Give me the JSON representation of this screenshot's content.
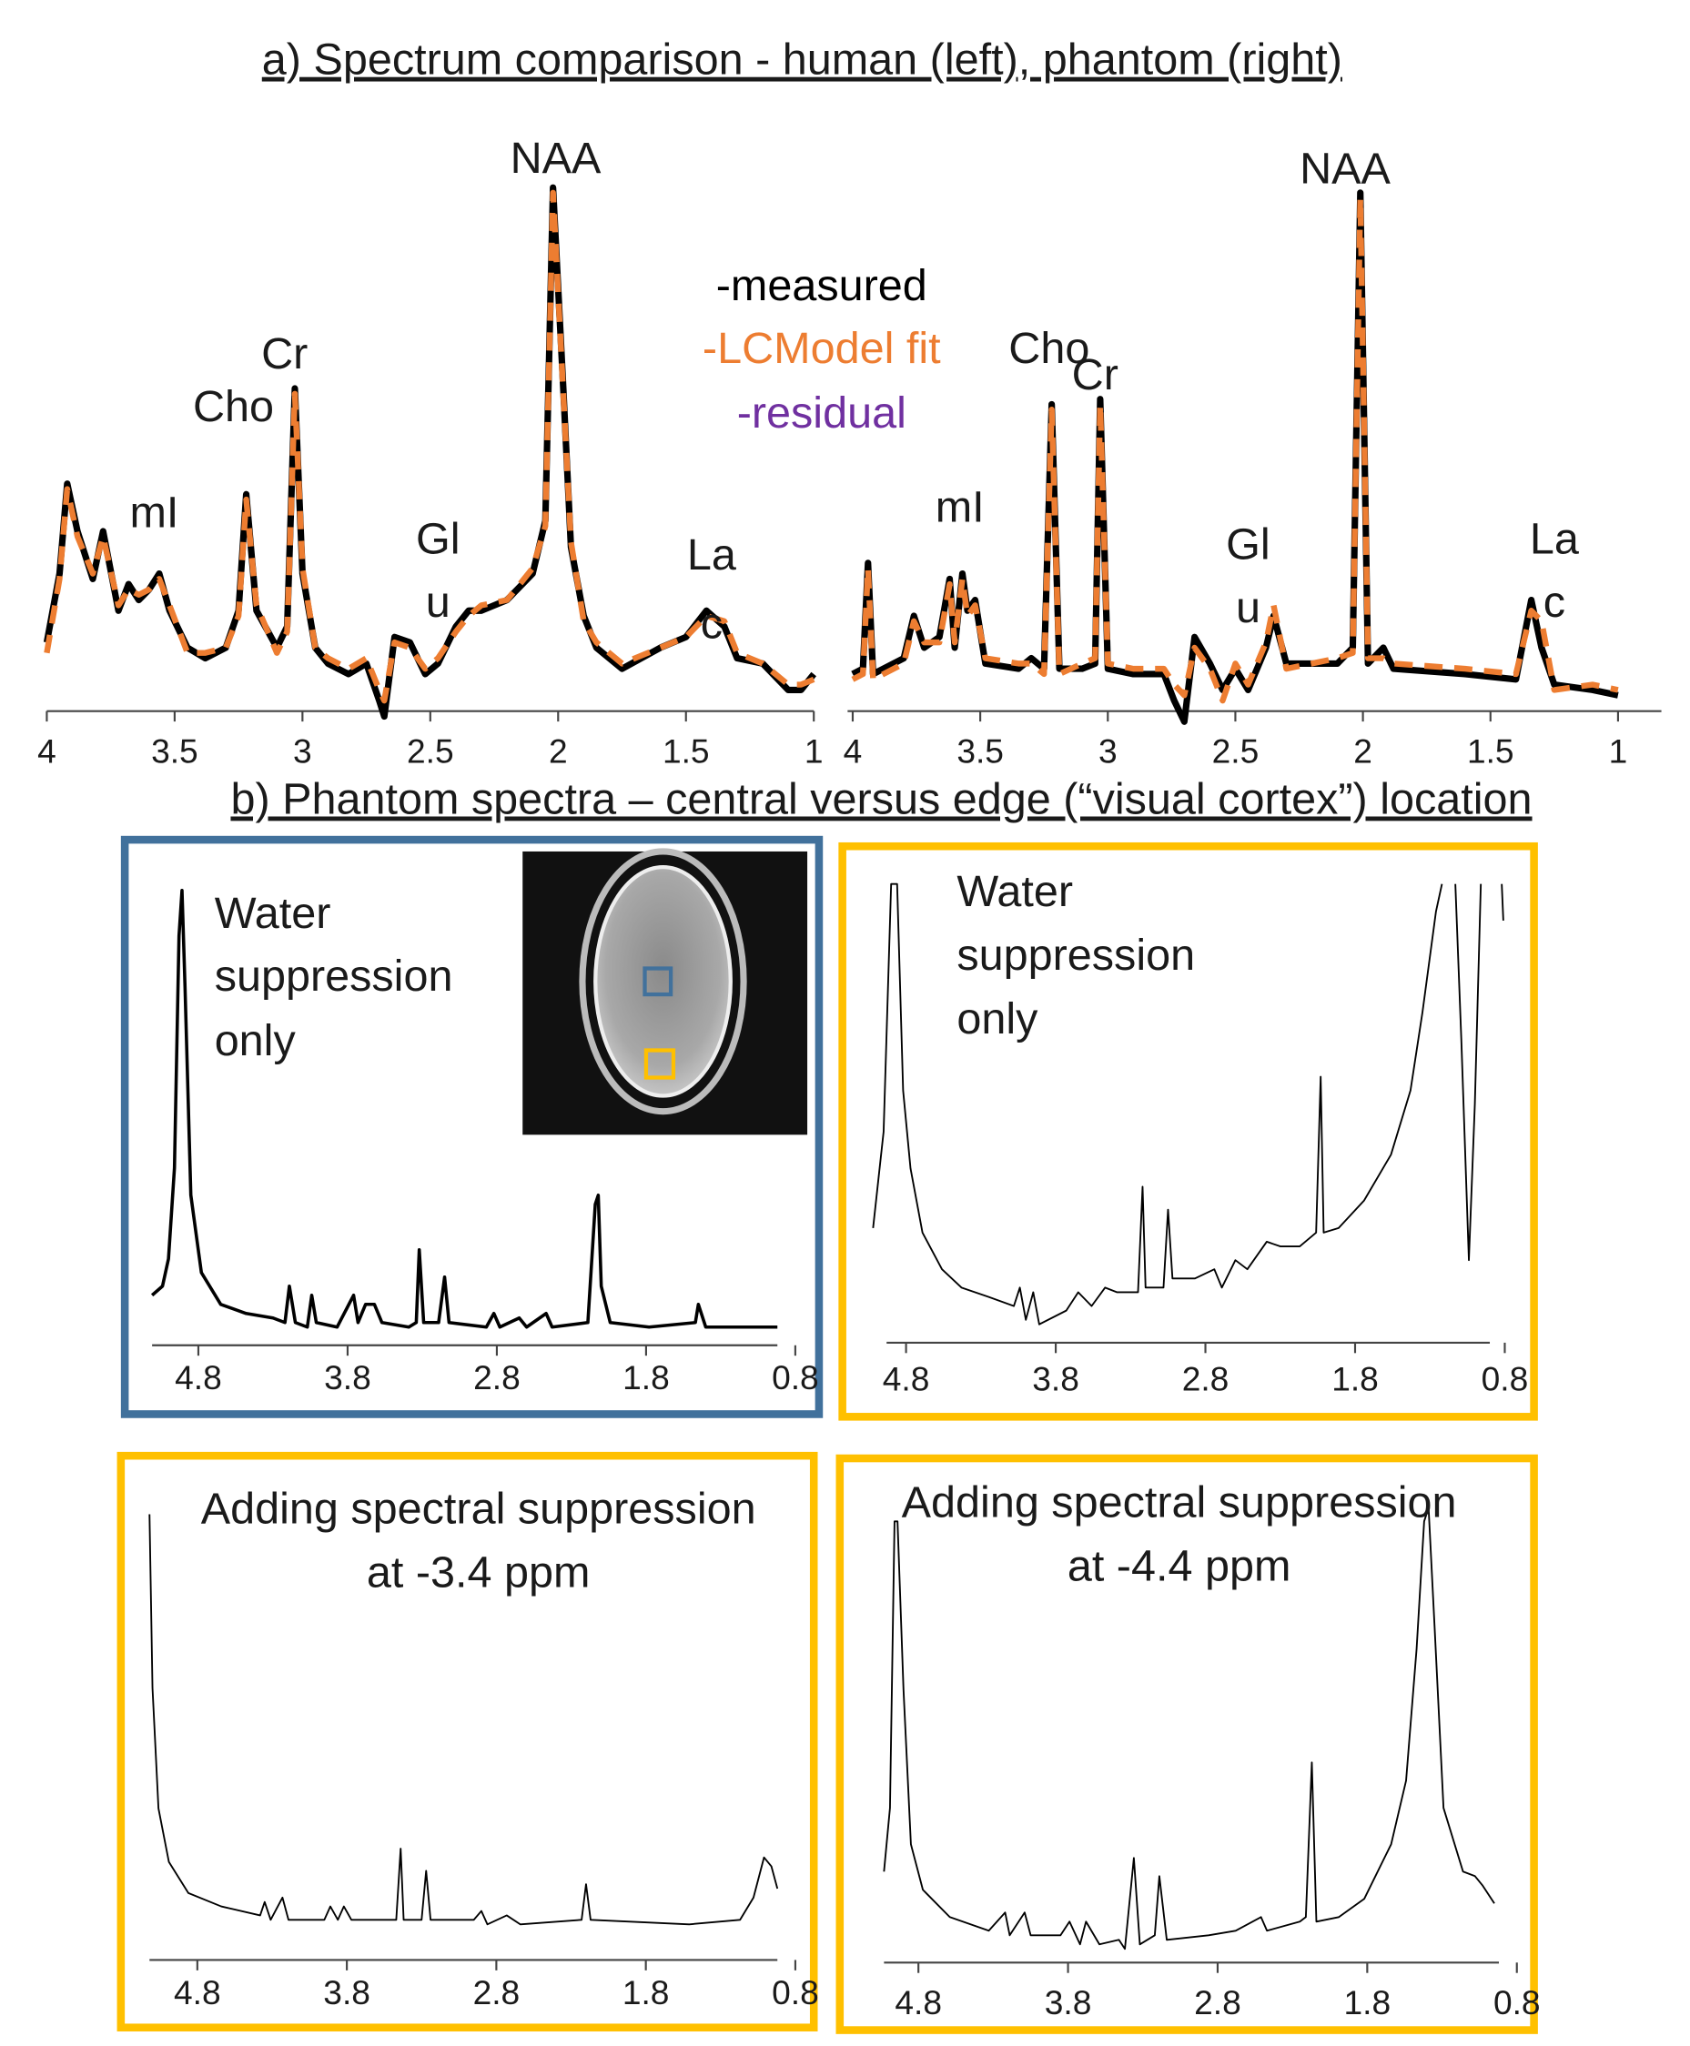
{
  "headings": [
    "a) Spectrum comparison  - human (left), phantom (right)",
    "b) Phantom spectra – central versus edge (“visual cortex”)  location"
  ],
  "chart_data": [
    {
      "type": "line",
      "xlim": [
        4,
        1
      ],
      "ylim": [
        0,
        100
      ],
      "xticks": [
        4,
        3.5,
        3,
        2.5,
        2,
        1.5,
        1
      ],
      "x": [
        4.0,
        3.95,
        3.92,
        3.88,
        3.82,
        3.78,
        3.72,
        3.68,
        3.64,
        3.6,
        3.56,
        3.52,
        3.45,
        3.38,
        3.3,
        3.25,
        3.22,
        3.18,
        3.1,
        3.06,
        3.03,
        3.0,
        2.95,
        2.9,
        2.82,
        2.75,
        2.7,
        2.68,
        2.64,
        2.58,
        2.52,
        2.47,
        2.4,
        2.35,
        2.3,
        2.2,
        2.1,
        2.05,
        2.02,
        1.98,
        1.95,
        1.9,
        1.85,
        1.75,
        1.6,
        1.5,
        1.42,
        1.35,
        1.3,
        1.2,
        1.1,
        1.05,
        1.0
      ],
      "series": [
        {
          "name": "-measured",
          "color": "#000000",
          "line_style": "solid",
          "values": [
            13,
            26,
            43,
            34,
            25,
            34,
            19,
            24,
            21,
            23,
            26,
            19,
            12,
            10,
            12,
            19,
            41,
            19,
            12,
            16,
            61,
            26,
            12,
            9,
            7,
            9,
            2,
            -1,
            14,
            13,
            7,
            9,
            16,
            19,
            19,
            21,
            26,
            36,
            99,
            61,
            31,
            18,
            12,
            8,
            12,
            14,
            19,
            16,
            10,
            9,
            4,
            4,
            7
          ]
        },
        {
          "name": "-LCModel fit",
          "color": "#ed7d31",
          "line_style": "dashed",
          "values": [
            11,
            25,
            42,
            33,
            26,
            33,
            20,
            23,
            22,
            23,
            25,
            20,
            11,
            11,
            12,
            18,
            40,
            20,
            11,
            15,
            60,
            27,
            12,
            10,
            8,
            10,
            4,
            2,
            13,
            12,
            8,
            10,
            15,
            18,
            20,
            21,
            27,
            35,
            98,
            60,
            32,
            17,
            13,
            9,
            12,
            14,
            18,
            17,
            11,
            9,
            5,
            5,
            6
          ]
        }
      ],
      "legend_extra": [
        {
          "label": "-residual",
          "color": "#7030a0"
        }
      ],
      "annotations": [
        {
          "text": "mI",
          "x": 3.58,
          "y": 37
        },
        {
          "text": "Cho",
          "x": 3.27,
          "y": 57
        },
        {
          "text": "Cr",
          "x": 3.07,
          "y": 67
        },
        {
          "text": "Gl",
          "x": 2.47,
          "y": 32
        },
        {
          "text": "u",
          "x": 2.47,
          "y": 20
        },
        {
          "text": "NAA",
          "x": 2.01,
          "y": 104
        },
        {
          "text": "La",
          "x": 1.4,
          "y": 29
        },
        {
          "text": "c",
          "x": 1.4,
          "y": 16
        }
      ]
    },
    {
      "type": "line",
      "xlim": [
        4.02,
        0.83
      ],
      "ylim": [
        0,
        100
      ],
      "xticks": [
        4,
        3.5,
        3,
        2.5,
        2,
        1.5,
        1
      ],
      "x": [
        4.0,
        3.96,
        3.94,
        3.92,
        3.8,
        3.76,
        3.72,
        3.66,
        3.62,
        3.6,
        3.57,
        3.55,
        3.52,
        3.48,
        3.35,
        3.3,
        3.25,
        3.22,
        3.19,
        3.1,
        3.05,
        3.03,
        3.0,
        2.9,
        2.78,
        2.74,
        2.7,
        2.66,
        2.6,
        2.55,
        2.5,
        2.45,
        2.38,
        2.35,
        2.3,
        2.1,
        2.04,
        2.01,
        1.98,
        1.92,
        1.88,
        1.6,
        1.4,
        1.34,
        1.3,
        1.25,
        1.1,
        1.0
      ],
      "series": [
        {
          "color": "#000000",
          "line_style": "solid",
          "values": [
            7,
            8,
            28,
            7,
            10,
            18,
            12,
            14,
            25,
            12,
            26,
            19,
            21,
            9,
            8,
            10,
            8,
            58,
            8,
            8,
            9,
            59,
            8,
            7,
            7,
            2,
            -2,
            14,
            9,
            4,
            8,
            4,
            12,
            18,
            9,
            9,
            12,
            98,
            9,
            12,
            8,
            7,
            6,
            21,
            12,
            5,
            4,
            3
          ]
        },
        {
          "color": "#ed7d31",
          "line_style": "dashed",
          "values": [
            6,
            7,
            27,
            6,
            9,
            17,
            13,
            13,
            24,
            13,
            25,
            18,
            20,
            10,
            9,
            9,
            7,
            57,
            7,
            9,
            10,
            58,
            9,
            8,
            8,
            5,
            3,
            12,
            8,
            2,
            9,
            5,
            13,
            20,
            8,
            10,
            11,
            97,
            10,
            10,
            9,
            8,
            7,
            19,
            17,
            4,
            5,
            4
          ]
        }
      ],
      "annotations": [
        {
          "text": "mI",
          "x": 3.58,
          "y": 38
        },
        {
          "text": "Cho",
          "x": 3.23,
          "y": 68
        },
        {
          "text": "Cr",
          "x": 3.05,
          "y": 63
        },
        {
          "text": "Gl",
          "x": 2.45,
          "y": 31
        },
        {
          "text": "u",
          "x": 2.45,
          "y": 19
        },
        {
          "text": "NAA",
          "x": 2.07,
          "y": 102
        },
        {
          "text": "La",
          "x": 1.25,
          "y": 32
        },
        {
          "text": "c",
          "x": 1.25,
          "y": 20
        }
      ]
    },
    {
      "type": "line",
      "xlim": [
        5.11,
        0.92
      ],
      "ylim": [
        0,
        100
      ],
      "xticks": [
        4.8,
        3.8,
        2.8,
        1.8,
        0.8
      ],
      "notes": [
        "Water",
        "suppression",
        "only"
      ],
      "x": [
        5.11,
        5.04,
        5.0,
        4.96,
        4.93,
        4.91,
        4.89,
        4.85,
        4.78,
        4.65,
        4.48,
        4.3,
        4.22,
        4.19,
        4.15,
        4.07,
        4.04,
        4.01,
        3.87,
        3.76,
        3.73,
        3.68,
        3.62,
        3.57,
        3.39,
        3.34,
        3.32,
        3.29,
        3.19,
        3.15,
        3.12,
        2.87,
        2.82,
        2.78,
        2.65,
        2.6,
        2.47,
        2.43,
        2.19,
        2.14,
        2.12,
        2.1,
        2.04,
        1.78,
        1.47,
        1.45,
        1.4,
        0.92
      ],
      "series": [
        {
          "color": "#000000",
          "line_style": "solid",
          "values": [
            11,
            13,
            19,
            39,
            90,
            100,
            79,
            33,
            16,
            9,
            7,
            6,
            5,
            13,
            5,
            4,
            11,
            5,
            4,
            11,
            5,
            9,
            9,
            5,
            4,
            5,
            21,
            5,
            5,
            15,
            5,
            4,
            7,
            4,
            6,
            4,
            7,
            4,
            5,
            31,
            33,
            13,
            5,
            4,
            5,
            9,
            4,
            4
          ]
        }
      ]
    },
    {
      "type": "line",
      "xlim": [
        4.93,
        0.9
      ],
      "ylim": [
        0,
        100
      ],
      "xticks": [
        4.8,
        3.8,
        2.8,
        1.8,
        0.8
      ],
      "notes": [
        "Water",
        "suppression",
        "only"
      ],
      "x": [
        5.02,
        4.95,
        4.9,
        4.86,
        4.82,
        4.77,
        4.69,
        4.56,
        4.43,
        4.25,
        4.08,
        4.04,
        4.0,
        3.95,
        3.91,
        3.73,
        3.65,
        3.56,
        3.47,
        3.39,
        3.3,
        3.25,
        3.22,
        3.2,
        3.08,
        3.05,
        3.02,
        2.87,
        2.74,
        2.69,
        2.6,
        2.52,
        2.39,
        2.3,
        2.17,
        2.06,
        2.03,
        2.01,
        1.91,
        1.74,
        1.56,
        1.43,
        1.35,
        1.26,
        1.22,
        null,
        1.13,
        1.09,
        1.04,
        1.0,
        0.96,
        null,
        0.82,
        0.81
      ],
      "series": [
        {
          "color": "#000000",
          "line_style": "thin",
          "values": [
            25,
            46,
            100,
            100,
            55,
            38,
            24,
            16,
            12,
            10,
            8,
            12,
            5,
            11,
            4,
            7,
            11,
            8,
            12,
            11,
            11,
            11,
            34,
            12,
            12,
            29,
            14,
            14,
            16,
            12,
            18,
            16,
            22,
            21,
            21,
            24,
            58,
            24,
            25,
            31,
            41,
            55,
            72,
            94,
            100,
            null,
            100,
            66,
            18,
            52,
            100,
            null,
            100,
            92
          ]
        }
      ]
    },
    {
      "type": "line",
      "xlim": [
        5.12,
        0.92
      ],
      "ylim": [
        0,
        100
      ],
      "xticks": [
        4.8,
        3.8,
        2.8,
        1.8,
        0.8
      ],
      "notes": [
        "Adding spectral suppression",
        "at -3.4 ppm"
      ],
      "x": [
        5.12,
        5.1,
        5.06,
        4.99,
        4.86,
        4.64,
        4.38,
        4.35,
        4.31,
        4.23,
        4.19,
        3.95,
        3.91,
        3.86,
        3.82,
        3.77,
        3.51,
        3.47,
        3.44,
        3.42,
        3.3,
        3.27,
        3.24,
        2.95,
        2.9,
        2.86,
        2.73,
        2.64,
        2.23,
        2.2,
        2.17,
        1.51,
        1.17,
        1.08,
        1.01,
        0.96,
        0.92
      ],
      "series": [
        {
          "color": "#000000",
          "line_style": "thin",
          "values": [
            100,
            61,
            34,
            22,
            15,
            12,
            10,
            13,
            9,
            14,
            9,
            9,
            12,
            9,
            12,
            9,
            9,
            9,
            25,
            9,
            9,
            20,
            9,
            9,
            11,
            8,
            10,
            8,
            9,
            17,
            9,
            8,
            9,
            14,
            23,
            21,
            16
          ]
        }
      ]
    },
    {
      "type": "line",
      "xlim": [
        5.03,
        0.92
      ],
      "ylim": [
        0,
        100
      ],
      "xticks": [
        4.8,
        3.8,
        2.8,
        1.8,
        0.8
      ],
      "notes": [
        "Adding spectral suppression",
        "at -4.4 ppm"
      ],
      "x": [
        5.03,
        4.99,
        4.96,
        4.94,
        4.9,
        4.85,
        4.77,
        4.59,
        4.33,
        4.22,
        4.19,
        4.09,
        4.05,
        3.85,
        3.79,
        3.72,
        3.68,
        3.59,
        3.46,
        3.42,
        3.36,
        3.32,
        3.22,
        3.19,
        3.14,
        2.86,
        2.68,
        2.51,
        2.47,
        2.25,
        2.21,
        2.17,
        2.14,
        1.99,
        1.82,
        1.64,
        1.54,
        1.47,
        1.42,
        1.39,
        1.35,
        1.29,
        1.16,
        1.08,
        1.03,
        0.95
      ],
      "series": [
        {
          "color": "#000000",
          "line_style": "thin",
          "values": [
            20,
            34,
            97,
            97,
            60,
            26,
            16,
            10,
            7,
            11,
            6,
            11,
            6,
            6,
            9,
            4,
            9,
            4,
            5,
            3,
            23,
            4,
            6,
            19,
            5,
            6,
            7,
            10,
            7,
            9,
            10,
            44,
            9,
            10,
            14,
            26,
            40,
            69,
            97,
            100,
            74,
            34,
            20,
            19,
            17,
            13
          ]
        }
      ]
    }
  ]
}
